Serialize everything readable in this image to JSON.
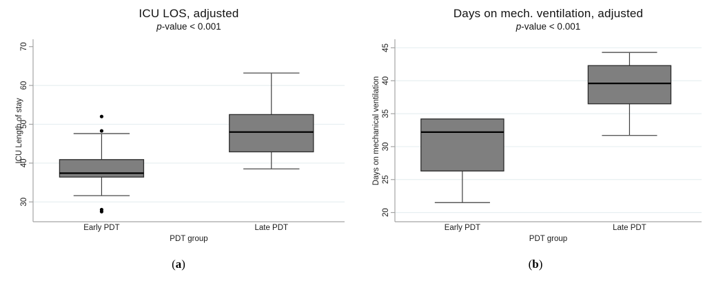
{
  "colors": {
    "box_fill": "#7f7f7f",
    "box_stroke": "#2b2b2b",
    "median_line": "#000000",
    "whisker": "#3d3d3d",
    "whisker_cap": "#5a5a5a",
    "gridline": "#e7eff1",
    "axis": "#a3a3a3",
    "text": "#1a1a1a",
    "outlier": "#000000",
    "background": "#ffffff"
  },
  "chart_data": [
    {
      "type": "box",
      "title": "ICU LOS, adjusted",
      "subtitle_italic": "p",
      "subtitle_plain": "-value < 0.001",
      "xlabel": "PDT group",
      "ylabel": "ICU Length of stay",
      "categories": [
        "Early PDT",
        "Late PDT"
      ],
      "yticks": [
        30,
        40,
        50,
        60,
        70
      ],
      "grid_ticks": [
        30,
        40,
        50,
        60
      ],
      "ylim": [
        24.9,
        71.9
      ],
      "grid": true,
      "legend": "none",
      "boxes": [
        {
          "category": "Early PDT",
          "whisker_low": 31.6,
          "q1": 36.4,
          "median": 37.4,
          "q3": 40.9,
          "whisker_high": 47.6,
          "outliers": [
            52.0,
            48.3,
            28.0,
            27.5
          ]
        },
        {
          "category": "Late PDT",
          "whisker_low": 38.5,
          "q1": 42.9,
          "median": 48.0,
          "q3": 52.5,
          "whisker_high": 63.2,
          "outliers": []
        }
      ],
      "panel_label": {
        "open": "(",
        "letter": "a",
        "close": ")"
      }
    },
    {
      "type": "box",
      "title": "Days on mech. ventilation, adjusted",
      "subtitle_italic": "p",
      "subtitle_plain": "-value < 0.001",
      "xlabel": "PDT group",
      "ylabel": "Days on mechanical ventilation",
      "categories": [
        "Early PDT",
        "Late PDT"
      ],
      "yticks": [
        20,
        25,
        30,
        35,
        40,
        45
      ],
      "grid_ticks": [
        20,
        25,
        30,
        35,
        40,
        45
      ],
      "ylim": [
        18.6,
        46.3
      ],
      "grid": true,
      "legend": "none",
      "boxes": [
        {
          "category": "Early PDT",
          "whisker_low": 21.5,
          "q1": 26.3,
          "median": 32.2,
          "q3": 34.2,
          "whisker_high": null,
          "outliers": []
        },
        {
          "category": "Late PDT",
          "whisker_low": 31.7,
          "q1": 36.5,
          "median": 39.6,
          "q3": 42.3,
          "whisker_high": 44.3,
          "outliers": []
        }
      ],
      "panel_label": {
        "open": "(",
        "letter": "b",
        "close": ")"
      }
    }
  ]
}
